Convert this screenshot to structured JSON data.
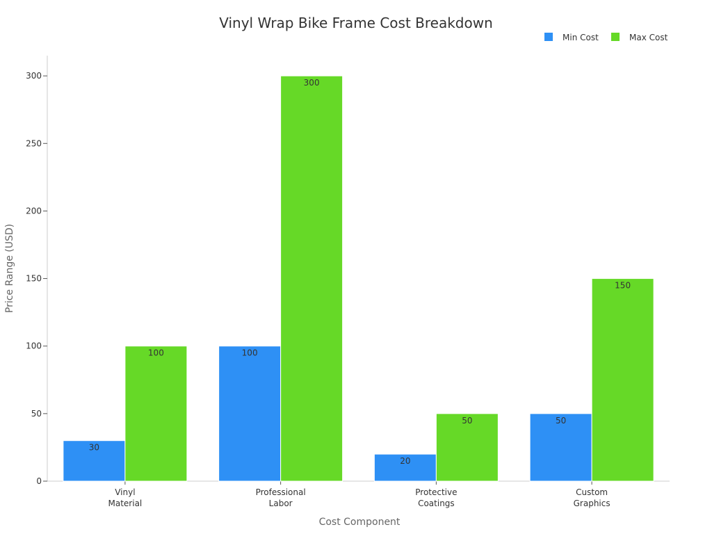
{
  "chart_data": {
    "type": "bar",
    "title": "Vinyl Wrap Bike Frame Cost Breakdown",
    "xlabel": "Cost Component",
    "ylabel": "Price Range (USD)",
    "categories": [
      [
        "Vinyl",
        "Material"
      ],
      [
        "Professional",
        "Labor"
      ],
      [
        "Protective",
        "Coatings"
      ],
      [
        "Custom",
        "Graphics"
      ]
    ],
    "series": [
      {
        "name": "Min Cost",
        "color": "#2E90F5",
        "values": [
          30,
          100,
          20,
          50
        ]
      },
      {
        "name": "Max Cost",
        "color": "#66D927",
        "values": [
          100,
          300,
          50,
          150
        ]
      }
    ],
    "ylim": [
      0,
      315
    ],
    "yticks": [
      0,
      50,
      100,
      150,
      200,
      250,
      300
    ],
    "grid": false,
    "legend": "top-right"
  }
}
